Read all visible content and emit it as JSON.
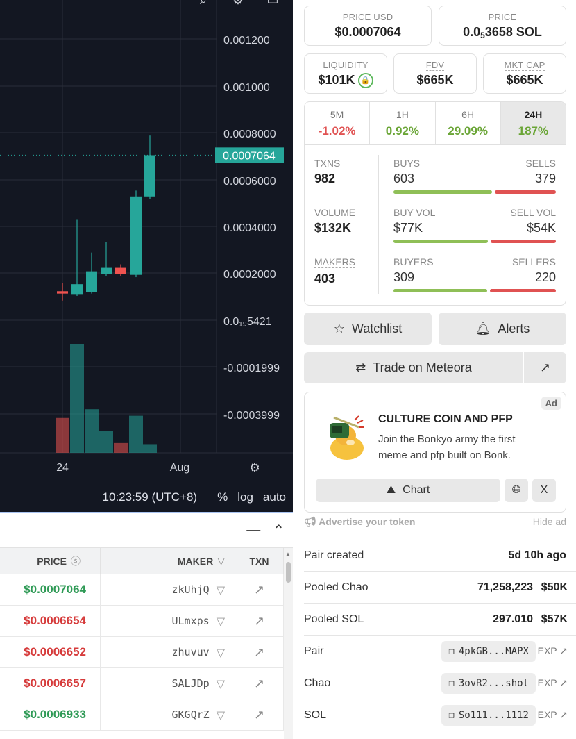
{
  "chart": {
    "price_ticks": [
      "0.001200",
      "0.001000",
      "0.0008000",
      "0.0006000",
      "0.0004000",
      "0.0002000",
      "0.0₁₉5421",
      "-0.0001999",
      "-0.0003999"
    ],
    "current_price": "0.0007064",
    "x_ticks": [
      "24",
      "Aug"
    ],
    "time": "10:23:59 (UTC+8)",
    "pct_label": "%",
    "log_label": "log",
    "auto_label": "auto",
    "colors": {
      "up": "#26a69a",
      "down": "#ef5350",
      "background": "#131722"
    }
  },
  "chart_data": {
    "type": "candlestick",
    "price_axis_range": [
      -0.0004,
      0.0013
    ],
    "candles": [
      {
        "o": 0.000125,
        "h": 0.00016,
        "l": 8.5e-05,
        "c": 0.000115
      },
      {
        "o": 0.00011,
        "h": 0.00043,
        "l": 0.000105,
        "c": 0.000155
      },
      {
        "o": 0.00012,
        "h": 0.00029,
        "l": 0.000115,
        "c": 0.00021
      },
      {
        "o": 0.0002,
        "h": 0.000335,
        "l": 0.00019,
        "c": 0.000225
      },
      {
        "o": 0.000225,
        "h": 0.00024,
        "l": 0.00019,
        "c": 0.0002
      },
      {
        "o": 0.000195,
        "h": 0.000555,
        "l": 0.000185,
        "c": 0.00053
      },
      {
        "o": 0.00053,
        "h": 0.00079,
        "l": 0.00052,
        "c": 0.000706
      }
    ],
    "volume": [
      {
        "v": 0.32,
        "dir": "down"
      },
      {
        "v": 1.0,
        "dir": "up"
      },
      {
        "v": 0.4,
        "dir": "up"
      },
      {
        "v": 0.2,
        "dir": "up"
      },
      {
        "v": 0.09,
        "dir": "down"
      },
      {
        "v": 0.34,
        "dir": "up"
      },
      {
        "v": 0.08,
        "dir": "up"
      }
    ]
  },
  "trades": {
    "headers": {
      "price": "PRICE",
      "maker": "MAKER",
      "txn": "TXN"
    },
    "rows": [
      {
        "price": "$0.0007064",
        "dir": "up",
        "maker": "zkUhjQ"
      },
      {
        "price": "$0.0006654",
        "dir": "down",
        "maker": "ULmxps"
      },
      {
        "price": "$0.0006652",
        "dir": "down",
        "maker": "zhuvuv"
      },
      {
        "price": "$0.0006657",
        "dir": "down",
        "maker": "SALJDp"
      },
      {
        "price": "$0.0006933",
        "dir": "up",
        "maker": "GKGQrZ"
      }
    ]
  },
  "prices": {
    "usd_label": "PRICE USD",
    "usd": "$0.0007064",
    "sol_label": "PRICE",
    "sol_pre": "0.0",
    "sol_sub": "5",
    "sol_post": "3658 SOL"
  },
  "metrics": {
    "liquidity_label": "LIQUIDITY",
    "liquidity": "$101K",
    "fdv_label": "FDV",
    "fdv": "$665K",
    "mktcap_label": "MKT CAP",
    "mktcap": "$665K"
  },
  "periods": [
    {
      "label": "5M",
      "value": "-1.02%",
      "dir": "down"
    },
    {
      "label": "1H",
      "value": "0.92%",
      "dir": "up"
    },
    {
      "label": "6H",
      "value": "29.09%",
      "dir": "up"
    },
    {
      "label": "24H",
      "value": "187%",
      "dir": "up",
      "active": true
    }
  ],
  "stats": [
    {
      "left_label": "TXNS",
      "left_value": "982",
      "a_label": "BUYS",
      "a_value": "603",
      "b_label": "SELLS",
      "b_value": "379",
      "ratio": 0.614
    },
    {
      "left_label": "VOLUME",
      "left_value": "$132K",
      "a_label": "BUY VOL",
      "a_value": "$77K",
      "b_label": "SELL VOL",
      "b_value": "$54K",
      "ratio": 0.588
    },
    {
      "left_label": "MAKERS",
      "left_value": "403",
      "a_label": "BUYERS",
      "a_value": "309",
      "b_label": "SELLERS",
      "b_value": "220",
      "ratio": 0.584
    }
  ],
  "buttons": {
    "watchlist": "Watchlist",
    "alerts": "Alerts",
    "trade": "Trade on Meteora"
  },
  "ad": {
    "badge": "Ad",
    "title": "CULTURE COIN AND PFP",
    "desc": "Join the Bonkyo army the first meme and pfp built on Bonk.",
    "chart_label": "Chart",
    "x_label": "X",
    "advertise": "Advertise your token",
    "hide": "Hide ad"
  },
  "info": {
    "pair_created_label": "Pair created",
    "pair_created": "5d 10h ago",
    "pooled_chao_label": "Pooled Chao",
    "pooled_chao": "71,258,223",
    "pooled_chao_usd": "$50K",
    "pooled_sol_label": "Pooled SOL",
    "pooled_sol": "297.010",
    "pooled_sol_usd": "$57K",
    "pair_label": "Pair",
    "pair_addr": "4pkGB...MAPX",
    "chao_label": "Chao",
    "chao_addr": "3ovR2...shot",
    "sol_label": "SOL",
    "sol_addr": "So111...1112",
    "exp_label": "EXP"
  }
}
